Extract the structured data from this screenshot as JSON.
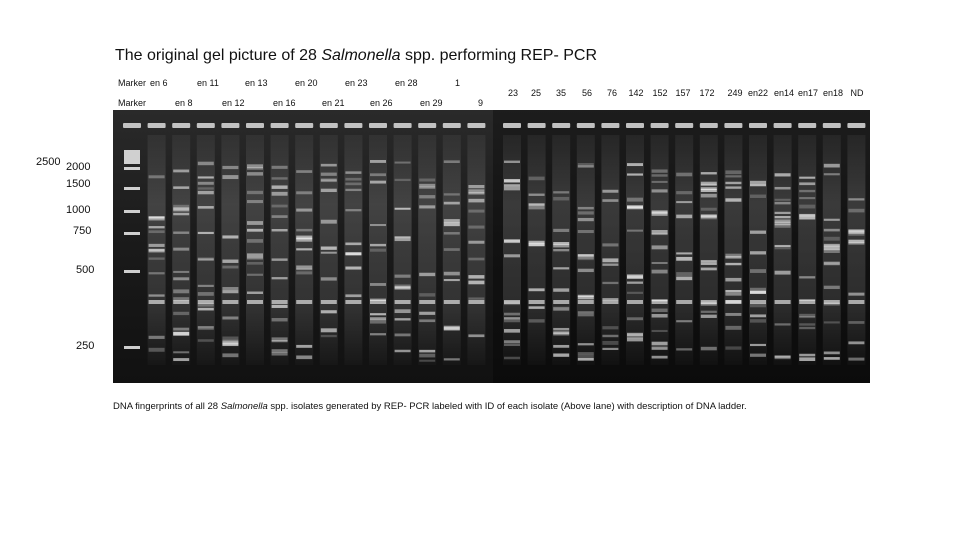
{
  "title": {
    "before": "The original gel picture of 28 ",
    "italic": "Salmonella",
    "after": " spp. performing REP- PCR"
  },
  "lanes_upper": [
    "Marker",
    "en 6",
    "en 11",
    "en 13",
    "en 20",
    "en 23",
    "en 28",
    "1"
  ],
  "lanes_lower": [
    "Marker",
    "en 8",
    "en 12",
    "en 16",
    "en 21",
    "en 26",
    "en 29",
    "9"
  ],
  "lanes_right": [
    "23",
    "25",
    "35",
    "56",
    "76",
    "142",
    "152",
    "157",
    "172",
    "249",
    "en22",
    "en14",
    "en17",
    "en18",
    "ND"
  ],
  "ladder": [
    "2500",
    "2000",
    "1500",
    "1000",
    "750",
    "500",
    "250"
  ],
  "caption": {
    "before": "DNA fingerprints of all 28 ",
    "italic": "Salmonella",
    "after": " spp. isolates generated by REP- PCR labeled with ID of each isolate (Above lane) with description of DNA ladder."
  }
}
